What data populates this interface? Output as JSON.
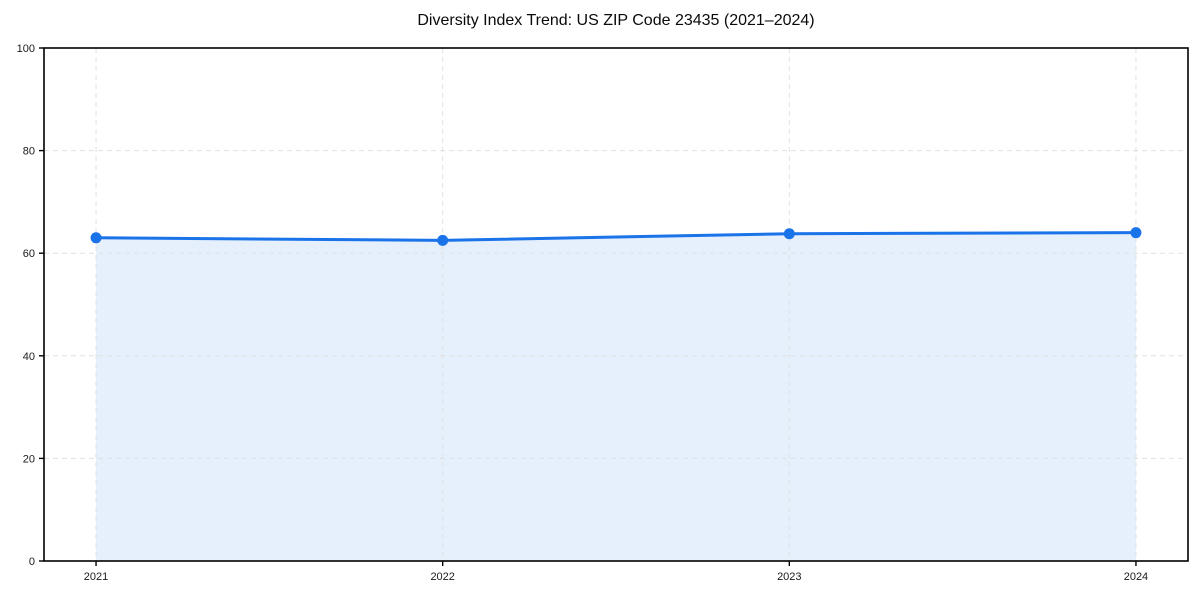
{
  "page": {
    "background": "#ffffff"
  },
  "chart_data": {
    "type": "line",
    "title": "Diversity Index Trend: US ZIP Code 23435 (2021–2024)",
    "x": [
      2021,
      2022,
      2023,
      2024
    ],
    "xtick_labels": [
      "2021",
      "2022",
      "2023",
      "2024"
    ],
    "series": [
      {
        "name": "Diversity Index",
        "values": [
          63.0,
          62.5,
          63.8,
          64.0
        ]
      }
    ],
    "xlabel": "",
    "ylabel": "",
    "ylim": [
      0,
      100
    ],
    "yticks": [
      0,
      20,
      40,
      60,
      80,
      100
    ],
    "grid": "dashed, horizontal and vertical",
    "legend": "none",
    "area_fill": true,
    "marker": "circle",
    "colors": {
      "line": "#1a73e8",
      "fill": "rgba(26,115,232,0.11)",
      "grid": "#e0e0e0",
      "spine": "#000000",
      "tick_label": "#1a1a1a",
      "title": "#0a0a0a",
      "background": "#ffffff"
    }
  }
}
